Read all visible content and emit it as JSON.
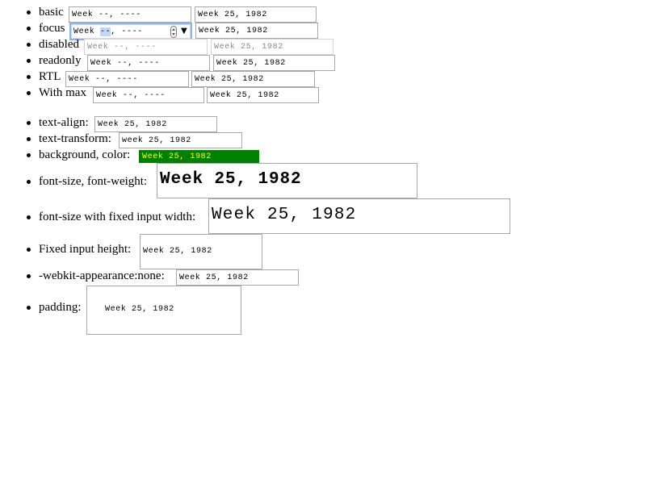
{
  "rows": {
    "basic": {
      "label": "basic",
      "empty_value": "Week --, ----",
      "filled_value": "Week 25, 1982"
    },
    "focus": {
      "label": "focus",
      "empty_value_prefix": "Week ",
      "empty_value_highlight": "--",
      "empty_value_suffix": ", ----",
      "dropdown_glyph": "▼",
      "filled_value": "Week 25, 1982"
    },
    "disabled": {
      "label": "disabled",
      "empty_value": "Week --, ----",
      "filled_value": "Week 25, 1982"
    },
    "readonly": {
      "label": "readonly",
      "empty_value": "Week --, ----",
      "filled_value": "Week 25, 1982"
    },
    "rtl": {
      "label": "RTL",
      "empty_value": "Week --, ----",
      "filled_value": "Week 25, 1982"
    },
    "with_max": {
      "label": "With max",
      "empty_value": "Week --, ----",
      "filled_value": "Week 25, 1982"
    },
    "text_align": {
      "label": "text-align:",
      "value": "Week 25, 1982"
    },
    "text_transform": {
      "label": "text-transform:",
      "value": "week 25, 1982"
    },
    "background_color": {
      "label": "background, color:",
      "value": "Week 25, 1982",
      "background": "#008000",
      "color": "#ffff00"
    },
    "font_size_weight": {
      "label": "font-size, font-weight:",
      "value": "Week 25, 1982"
    },
    "font_size_fixed_width": {
      "label": "font-size with fixed input width:",
      "value": "Week 25, 1982"
    },
    "fixed_height": {
      "label": "Fixed input height:",
      "value": "Week 25, 1982"
    },
    "webkit_appearance": {
      "label": "-webkit-appearance:none:",
      "value": "Week 25, 1982"
    },
    "padding": {
      "label": "padding:",
      "value": "Week 25, 1982"
    }
  }
}
